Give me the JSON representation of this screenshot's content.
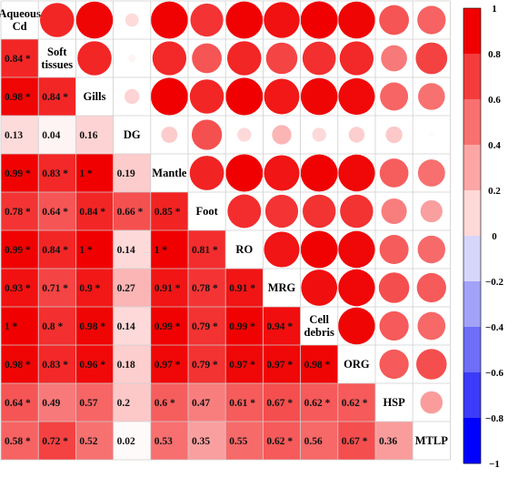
{
  "chart_data": {
    "type": "heatmap",
    "title": "",
    "xlabel": "",
    "ylabel": "",
    "variables": [
      [
        "Aqueous",
        "Cd"
      ],
      [
        "Soft",
        "tissues"
      ],
      [
        "Gills"
      ],
      [
        "DG"
      ],
      [
        "Mantle"
      ],
      [
        "Foot"
      ],
      [
        "RO"
      ],
      [
        "MRG"
      ],
      [
        "Cell",
        "debris"
      ],
      [
        "ORG"
      ],
      [
        "HSP"
      ],
      [
        "MTLP"
      ]
    ],
    "lower_triangle": [
      [],
      [
        {
          "v": 0.84,
          "t": "0.84 *"
        }
      ],
      [
        {
          "v": 0.98,
          "t": "0.98 *"
        },
        {
          "v": 0.84,
          "t": "0.84 *"
        }
      ],
      [
        {
          "v": 0.13,
          "t": "0.13"
        },
        {
          "v": 0.04,
          "t": "0.04"
        },
        {
          "v": 0.16,
          "t": "0.16"
        }
      ],
      [
        {
          "v": 0.99,
          "t": "0.99 *"
        },
        {
          "v": 0.83,
          "t": "0.83 *"
        },
        {
          "v": 1,
          "t": "1 *"
        },
        {
          "v": 0.19,
          "t": "0.19"
        }
      ],
      [
        {
          "v": 0.78,
          "t": "0.78 *"
        },
        {
          "v": 0.64,
          "t": "0.64 *"
        },
        {
          "v": 0.84,
          "t": "0.84 *"
        },
        {
          "v": 0.66,
          "t": "0.66 *"
        },
        {
          "v": 0.85,
          "t": "0.85 *"
        }
      ],
      [
        {
          "v": 0.99,
          "t": "0.99 *"
        },
        {
          "v": 0.84,
          "t": "0.84 *"
        },
        {
          "v": 1,
          "t": "1 *"
        },
        {
          "v": 0.14,
          "t": "0.14"
        },
        {
          "v": 1,
          "t": "1 *"
        },
        {
          "v": 0.81,
          "t": "0.81 *"
        }
      ],
      [
        {
          "v": 0.93,
          "t": "0.93 *"
        },
        {
          "v": 0.71,
          "t": "0.71 *"
        },
        {
          "v": 0.9,
          "t": "0.9 *"
        },
        {
          "v": 0.27,
          "t": "0.27"
        },
        {
          "v": 0.91,
          "t": "0.91 *"
        },
        {
          "v": 0.78,
          "t": "0.78 *"
        },
        {
          "v": 0.91,
          "t": "0.91 *"
        }
      ],
      [
        {
          "v": 1,
          "t": "1 *"
        },
        {
          "v": 0.8,
          "t": "0.8 *"
        },
        {
          "v": 0.98,
          "t": "0.98 *"
        },
        {
          "v": 0.14,
          "t": "0.14"
        },
        {
          "v": 0.99,
          "t": "0.99 *"
        },
        {
          "v": 0.79,
          "t": "0.79 *"
        },
        {
          "v": 0.99,
          "t": "0.99 *"
        },
        {
          "v": 0.94,
          "t": "0.94 *"
        }
      ],
      [
        {
          "v": 0.98,
          "t": "0.98 *"
        },
        {
          "v": 0.83,
          "t": "0.83 *"
        },
        {
          "v": 0.96,
          "t": "0.96 *"
        },
        {
          "v": 0.18,
          "t": "0.18"
        },
        {
          "v": 0.97,
          "t": "0.97 *"
        },
        {
          "v": 0.79,
          "t": "0.79 *"
        },
        {
          "v": 0.97,
          "t": "0.97 *"
        },
        {
          "v": 0.97,
          "t": "0.97 *"
        },
        {
          "v": 0.98,
          "t": "0.98 *"
        }
      ],
      [
        {
          "v": 0.64,
          "t": "0.64 *"
        },
        {
          "v": 0.49,
          "t": "0.49"
        },
        {
          "v": 0.57,
          "t": "0.57"
        },
        {
          "v": 0.2,
          "t": "0.2"
        },
        {
          "v": 0.6,
          "t": "0.6 *"
        },
        {
          "v": 0.47,
          "t": "0.47"
        },
        {
          "v": 0.61,
          "t": "0.61 *"
        },
        {
          "v": 0.67,
          "t": "0.67 *"
        },
        {
          "v": 0.62,
          "t": "0.62 *"
        },
        {
          "v": 0.62,
          "t": "0.62 *"
        }
      ],
      [
        {
          "v": 0.58,
          "t": "0.58 *"
        },
        {
          "v": 0.72,
          "t": "0.72 *"
        },
        {
          "v": 0.52,
          "t": "0.52"
        },
        {
          "v": 0.02,
          "t": "0.02"
        },
        {
          "v": 0.53,
          "t": "0.53"
        },
        {
          "v": 0.35,
          "t": "0.35"
        },
        {
          "v": 0.55,
          "t": "0.55"
        },
        {
          "v": 0.62,
          "t": "0.62 *"
        },
        {
          "v": 0.56,
          "t": "0.56"
        },
        {
          "v": 0.67,
          "t": "0.67 *"
        },
        {
          "v": 0.36,
          "t": "0.36"
        }
      ]
    ],
    "upper_triangle_encoding": "circle area proportional to correlation, colored by value",
    "colorbar": {
      "range": [
        -1,
        1
      ],
      "ticks": [
        "1",
        "0.8",
        "0.6",
        "0.4",
        "0.2",
        "0",
        "−0.2",
        "−0.4",
        "−0.6",
        "−0.8",
        "−1"
      ],
      "steps": 10,
      "colors": [
        "#0000ff",
        "#3c3cf8",
        "#6e6ef8",
        "#a2a2f8",
        "#d6d6fa",
        "#ffd8d8",
        "#fca6a6",
        "#f87070",
        "#f43c3c",
        "#f00000"
      ]
    },
    "grid": true,
    "legend": "right"
  }
}
